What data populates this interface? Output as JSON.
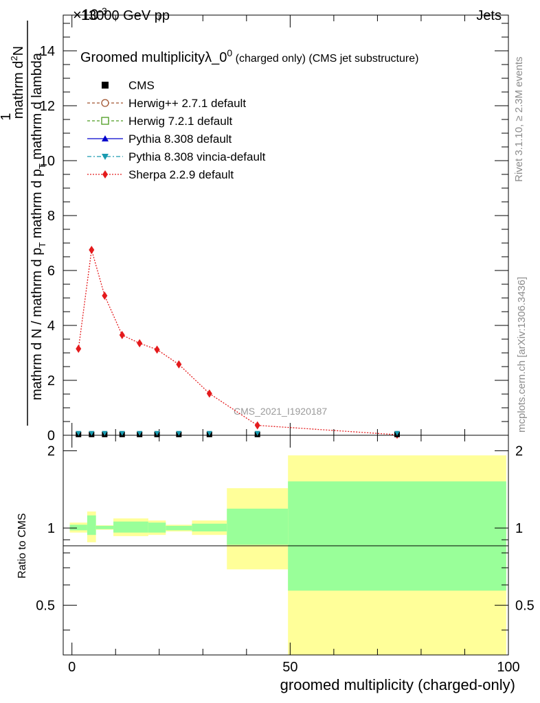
{
  "header": {
    "energy_label": "13000 GeV pp",
    "category_label": "Jets",
    "exponent_label": "×10",
    "exponent_power": "-3"
  },
  "title": {
    "main": "Groomed multiplicityλ_0",
    "superscript": "0",
    "suffix": " (charged only) (CMS jet substructure)"
  },
  "side_labels": {
    "rivet": "Rivet 3.1.10, ≥ 2.3M events",
    "mcplots": "mcplots.cern.ch [arXiv:1306.3436]"
  },
  "watermark": "CMS_2021_I1920187",
  "axes": {
    "ylabel_top": "1",
    "ylabel_numerator": "mathrm d",
    "ylabel_numerator_tail": "N",
    "ylabel_numerator_super": "2",
    "ylabel_denominator_a": "mathrm d N / mathrm d p",
    "ylabel_denominator_sub_a": "T",
    "ylabel_denominator_b": " mathrm d p",
    "ylabel_denominator_sub_b": "T",
    "ylabel_denominator_c": " mathrm d lambda",
    "ratio_ylabel": "Ratio to CMS",
    "xlabel": "groomed multiplicity (charged-only)"
  },
  "colors": {
    "cms": "#000000",
    "herwigpp": "#a0522d",
    "herwig7": "#4b9b1e",
    "pythia": "#0000cc",
    "vincia": "#1a9bb0",
    "sherpa": "#e41a1c",
    "band_inner": "#99ff99",
    "band_outer": "#ffff99"
  },
  "chart_data": {
    "type": "line",
    "xlim": [
      -2,
      100
    ],
    "ylim": [
      0,
      15.3
    ],
    "y_scale_note": "values in units of 10^-3",
    "x_ticks": [
      0,
      50,
      100
    ],
    "y_ticks": [
      0,
      2,
      4,
      6,
      8,
      10,
      12,
      14
    ],
    "legend_position": "top-left",
    "series": [
      {
        "name": "CMS",
        "style": "marker-square",
        "x": [
          1.5,
          4.5,
          7.5,
          11.5,
          15.5,
          19.5,
          24.5,
          31.5,
          42.5,
          74.5
        ],
        "y": [
          0.03,
          0.03,
          0.03,
          0.03,
          0.03,
          0.03,
          0.03,
          0.03,
          0.03,
          0.03
        ]
      },
      {
        "name": "Herwig++ 2.7.1 default",
        "style": "open-circle-dashed",
        "x": [],
        "y": []
      },
      {
        "name": "Herwig 7.2.1 default",
        "style": "open-square-dashed",
        "x": [],
        "y": []
      },
      {
        "name": "Pythia 8.308 default",
        "style": "triangle-solid",
        "x": [],
        "y": []
      },
      {
        "name": "Pythia 8.308 vincia-default",
        "style": "triangle-down-dashdot",
        "x": [
          1.5,
          4.5,
          7.5,
          11.5,
          15.5,
          19.5,
          24.5,
          31.5,
          42.5,
          74.5
        ],
        "y": [
          0.03,
          0.03,
          0.03,
          0.03,
          0.03,
          0.03,
          0.03,
          0.03,
          0.03,
          0.03
        ]
      },
      {
        "name": "Sherpa 2.2.9 default",
        "style": "diamond-dotted",
        "x": [
          1.5,
          4.5,
          7.5,
          11.5,
          15.5,
          19.5,
          24.5,
          31.5,
          42.5,
          74.5
        ],
        "y": [
          3.15,
          6.75,
          5.08,
          3.65,
          3.35,
          3.12,
          2.58,
          1.52,
          0.36,
          0.02
        ]
      }
    ],
    "ratio": {
      "ylabel": "Ratio to CMS",
      "ylim": [
        0.32,
        2.3
      ],
      "y_ticks": [
        0.5,
        1,
        2
      ],
      "bands": [
        {
          "x0": -0.5,
          "x1": 3.5,
          "inner": [
            0.98,
            1.03
          ],
          "outer": [
            0.96,
            1.05
          ]
        },
        {
          "x0": 3.5,
          "x1": 5.5,
          "inner": [
            0.94,
            1.12
          ],
          "outer": [
            0.88,
            1.16
          ]
        },
        {
          "x0": 5.5,
          "x1": 9.5,
          "inner": [
            0.99,
            1.02
          ],
          "outer": [
            0.985,
            1.025
          ]
        },
        {
          "x0": 9.5,
          "x1": 17.5,
          "inner": [
            0.96,
            1.06
          ],
          "outer": [
            0.93,
            1.09
          ]
        },
        {
          "x0": 17.5,
          "x1": 21.5,
          "inner": [
            0.96,
            1.05
          ],
          "outer": [
            0.94,
            1.07
          ]
        },
        {
          "x0": 21.5,
          "x1": 27.5,
          "inner": [
            0.98,
            1.02
          ],
          "outer": [
            0.97,
            1.03
          ]
        },
        {
          "x0": 27.5,
          "x1": 35.5,
          "inner": [
            0.97,
            1.04
          ],
          "outer": [
            0.94,
            1.07
          ]
        },
        {
          "x0": 35.5,
          "x1": 49.5,
          "inner": [
            0.86,
            1.19
          ],
          "outer": [
            0.69,
            1.43
          ]
        },
        {
          "x0": 49.5,
          "x1": 99.5,
          "inner": [
            0.57,
            1.52
          ],
          "outer": [
            0.32,
            1.92
          ]
        }
      ]
    }
  }
}
